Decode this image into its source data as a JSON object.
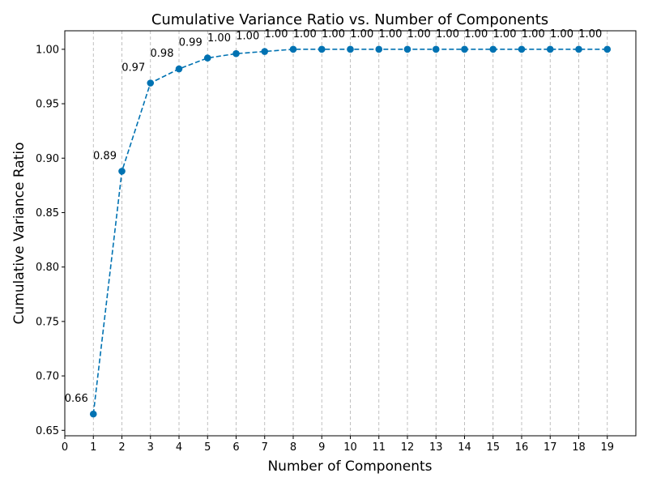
{
  "chart_data": {
    "type": "line",
    "title": "Cumulative Variance Ratio vs. Number of Components",
    "xlabel": "Number of Components",
    "ylabel": "Cumulative Variance Ratio",
    "xlim": [
      0,
      20
    ],
    "ylim": [
      0.645,
      1.017
    ],
    "xticks": [
      0,
      1,
      2,
      3,
      4,
      5,
      6,
      7,
      8,
      9,
      10,
      11,
      12,
      13,
      14,
      15,
      16,
      17,
      18,
      19
    ],
    "yticks": [
      0.65,
      0.7,
      0.75,
      0.8,
      0.85,
      0.9,
      0.95,
      1.0
    ],
    "grid": "x-axis dashed",
    "legend": "none",
    "line_style": "dashed with circle markers",
    "series": [
      {
        "color": "#0072b2",
        "x": [
          1,
          2,
          3,
          4,
          5,
          6,
          7,
          8,
          9,
          10,
          11,
          12,
          13,
          14,
          15,
          16,
          17,
          18,
          19
        ],
        "y": [
          0.665,
          0.888,
          0.969,
          0.982,
          0.992,
          0.996,
          0.998,
          1.0,
          1.0,
          1.0,
          1.0,
          1.0,
          1.0,
          1.0,
          1.0,
          1.0,
          1.0,
          1.0,
          1.0
        ],
        "data_labels": [
          "0.66",
          "0.89",
          "0.97",
          "0.98",
          "0.99",
          "1.00",
          "1.00",
          "1.00",
          "1.00",
          "1.00",
          "1.00",
          "1.00",
          "1.00",
          "1.00",
          "1.00",
          "1.00",
          "1.00",
          "1.00",
          "1.00"
        ]
      }
    ]
  }
}
